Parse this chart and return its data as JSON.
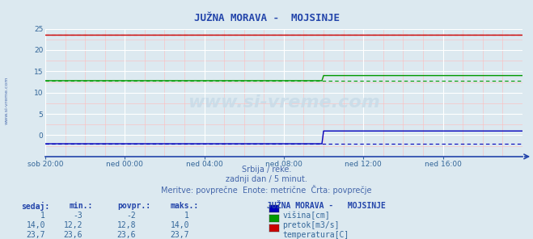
{
  "title": "JUŽNA MORAVA -  MOJSINJE",
  "bg_color": "#dce9f0",
  "plot_bg_color": "#dce9f0",
  "x_labels": [
    "sob 20:00",
    "ned 00:00",
    "ned 04:00",
    "ned 08:00",
    "ned 12:00",
    "ned 16:00"
  ],
  "x_ticks": [
    0,
    48,
    96,
    144,
    192,
    240
  ],
  "x_max": 288,
  "y_min": -5,
  "y_max": 25,
  "y_ticks": [
    0,
    5,
    10,
    15,
    20,
    25
  ],
  "subtitle1": "Srbija / reke.",
  "subtitle2": "zadnji dan / 5 minut.",
  "subtitle3": "Meritve: povprečne  Enote: metrične  Črta: povprečje",
  "legend_title": "JUŽNA MORAVA -   MOJSINJE",
  "table_headers": [
    "sedaj:",
    "min.:",
    "povpr.:",
    "maks.:"
  ],
  "table_data": [
    [
      "1",
      "-3",
      "-2",
      "1"
    ],
    [
      "14,0",
      "12,2",
      "12,8",
      "14,0"
    ],
    [
      "23,7",
      "23,6",
      "23,6",
      "23,7"
    ]
  ],
  "legend_labels": [
    "višina[cm]",
    "pretok[m3/s]",
    "temperatura[C]"
  ],
  "legend_colors": [
    "#0000bb",
    "#009900",
    "#cc0000"
  ],
  "watermark": "www.si-vreme.com",
  "n_points": 289,
  "visina_value": -2.0,
  "visina_jump_idx": 168,
  "visina_jump_value": 1.0,
  "pretok_value": 12.8,
  "pretok_jump_idx": 168,
  "pretok_jump_value": 14.0,
  "temperatura_value": 23.6,
  "avg_visina": -2.0,
  "avg_pretok": 12.8,
  "avg_temperatura": 23.6
}
